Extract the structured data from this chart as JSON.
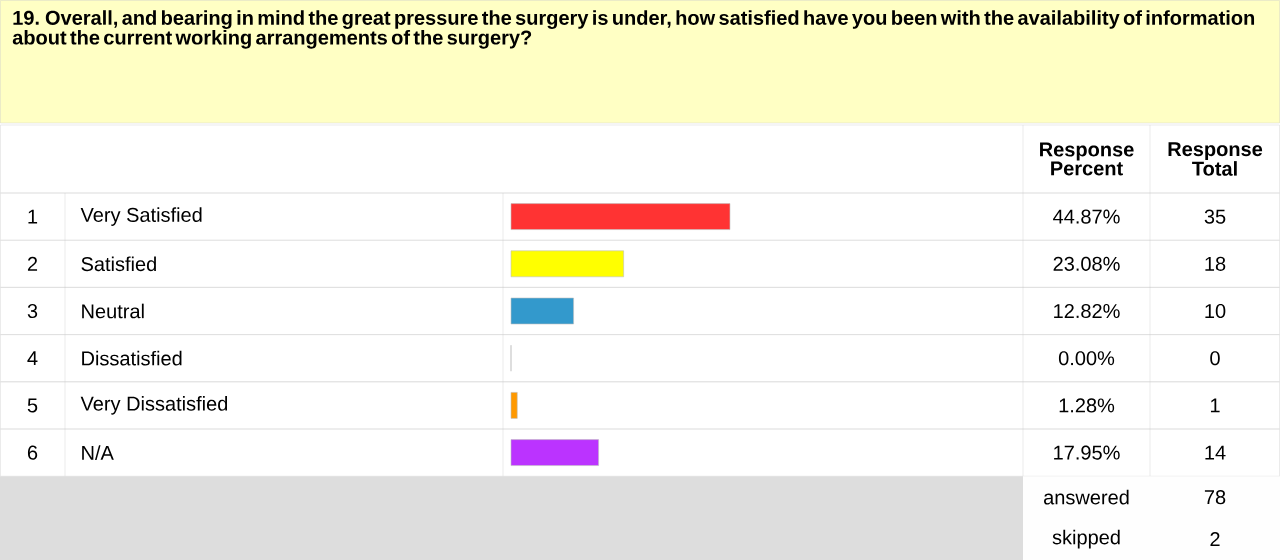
{
  "chart_data": {
    "type": "bar",
    "orientation": "horizontal",
    "title": "19. Overall, and bearing in mind the great pressure the surgery is under, how satisfied have you been with the availability of information about the current working arrangements of the surgery?",
    "categories": [
      "Very Satisfied",
      "Satisfied",
      "Neutral",
      "Dissatisfied",
      "Very Dissatisfied",
      "N/A"
    ],
    "values": [
      44.87,
      23.08,
      12.82,
      0.0,
      1.28,
      17.95
    ],
    "colors": [
      "#ff3333",
      "#ffff00",
      "#3399cc",
      "#66cc66",
      "#ff9900",
      "#bb33ff"
    ],
    "value_labels": [
      "44.87%",
      "23.08%",
      "12.82%",
      "0.00%",
      "1.28%",
      "17.95%"
    ],
    "annotations": [
      "Response Percent",
      "Response Total",
      "35",
      "18",
      "10",
      "0",
      "1",
      "14",
      "answered",
      "78",
      "skipped",
      "2",
      "1",
      "2",
      "3",
      "4",
      "5",
      "6"
    ]
  }
}
